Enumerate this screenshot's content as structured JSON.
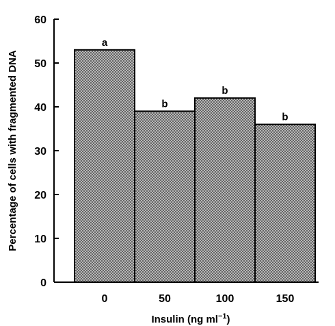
{
  "chart_data": {
    "type": "bar",
    "categories": [
      "0",
      "50",
      "100",
      "150"
    ],
    "values": [
      53,
      39,
      42,
      36
    ],
    "bar_labels": [
      "a",
      "b",
      "b",
      "b"
    ],
    "xlabel_main": "Insulin (ng ml",
    "xlabel_sup": "−1",
    "xlabel_end": ")",
    "ylabel": "Percentage of cells with fragmented DNA",
    "ylim": [
      0,
      60
    ],
    "yticks": [
      "0",
      "10",
      "20",
      "30",
      "40",
      "50",
      "60"
    ],
    "grid": false,
    "colors": {
      "bar_fill": "#b8b8b8",
      "bar_pattern": "#2a2a2a",
      "axis": "#000000"
    }
  }
}
